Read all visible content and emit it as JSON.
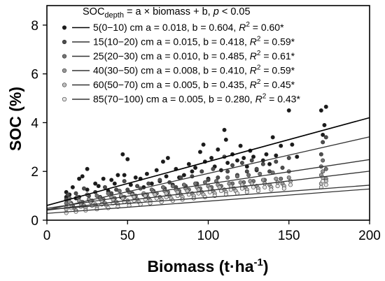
{
  "chart_data": {
    "type": "scatter",
    "xlabel": "Biomass",
    "xlabel_unit": "(t·ha",
    "xlabel_unit_sup": "-1",
    "xlabel_unit_close": ")",
    "ylabel": "SOC (%)",
    "xlim": [
      0,
      200
    ],
    "ylim": [
      0,
      8.8
    ],
    "x_ticks": [
      0,
      50,
      100,
      150,
      200
    ],
    "y_ticks": [
      0,
      2,
      4,
      6,
      8
    ],
    "x_tick_labels": [
      "0",
      "50",
      "100",
      "150",
      "200"
    ],
    "y_tick_labels": [
      "0",
      "2",
      "4",
      "6",
      "8"
    ],
    "legend_position": "top-right (inside)",
    "legend_header": {
      "lhs": "SOC",
      "lhs_sub": "depth",
      "rhs": " = a × biomass + b, ",
      "p_label": "p",
      "p_rest": " < 0.05"
    },
    "series": [
      {
        "name": "5(0−10) cm",
        "label_text": "a = 0.018, b = 0.604, ",
        "r2_label": "R",
        "r2_value": "= 0.60*",
        "a": 0.018,
        "b": 0.604,
        "r2": 0.6,
        "color": "#1a1a1a",
        "points": [
          [
            12,
            1.15
          ],
          [
            12,
            0.95
          ],
          [
            14,
            1.05
          ],
          [
            16,
            1.35
          ],
          [
            18,
            0.9
          ],
          [
            20,
            1.7
          ],
          [
            22,
            1.8
          ],
          [
            25,
            2.1
          ],
          [
            25,
            1.25
          ],
          [
            30,
            1.5
          ],
          [
            32,
            1.4
          ],
          [
            35,
            1.7
          ],
          [
            38,
            1.2
          ],
          [
            40,
            1.65
          ],
          [
            42,
            1.5
          ],
          [
            44,
            1.85
          ],
          [
            47,
            2.7
          ],
          [
            48,
            1.85
          ],
          [
            50,
            2.5
          ],
          [
            52,
            1.45
          ],
          [
            55,
            1.75
          ],
          [
            58,
            1.7
          ],
          [
            60,
            1.35
          ],
          [
            62,
            1.9
          ],
          [
            65,
            1.5
          ],
          [
            68,
            2.05
          ],
          [
            70,
            1.6
          ],
          [
            72,
            2.4
          ],
          [
            74,
            1.8
          ],
          [
            75,
            2.55
          ],
          [
            78,
            1.45
          ],
          [
            80,
            2.1
          ],
          [
            82,
            1.75
          ],
          [
            85,
            1.85
          ],
          [
            88,
            2.3
          ],
          [
            90,
            2.0
          ],
          [
            92,
            2.15
          ],
          [
            95,
            2.8
          ],
          [
            97,
            3.1
          ],
          [
            98,
            2.4
          ],
          [
            100,
            1.7
          ],
          [
            102,
            2.55
          ],
          [
            104,
            2.2
          ],
          [
            106,
            2.9
          ],
          [
            108,
            2.05
          ],
          [
            110,
            3.7
          ],
          [
            111,
            3.3
          ],
          [
            112,
            2.35
          ],
          [
            115,
            2.7
          ],
          [
            118,
            2.45
          ],
          [
            120,
            3.05
          ],
          [
            122,
            2.55
          ],
          [
            124,
            2.2
          ],
          [
            126,
            2.85
          ],
          [
            128,
            2.6
          ],
          [
            130,
            2.05
          ],
          [
            134,
            2.45
          ],
          [
            136,
            2.7
          ],
          [
            138,
            2.3
          ],
          [
            140,
            3.4
          ],
          [
            142,
            2.65
          ],
          [
            145,
            3.05
          ],
          [
            150,
            4.5
          ],
          [
            152,
            3.1
          ],
          [
            155,
            2.6
          ],
          [
            170,
            4.5
          ],
          [
            171,
            3.5
          ],
          [
            172,
            3.9
          ],
          [
            173,
            4.65
          ]
        ]
      },
      {
        "name": "15(10−20) cm",
        "label_text": "a = 0.015, b = 0.418, ",
        "r2_label": "R",
        "r2_value": "= 0.59*",
        "a": 0.015,
        "b": 0.418,
        "r2": 0.59,
        "color": "#4d4d4d",
        "points": [
          [
            12,
            0.85
          ],
          [
            13,
            1.05
          ],
          [
            15,
            0.7
          ],
          [
            18,
            1.1
          ],
          [
            20,
            0.95
          ],
          [
            23,
            1.3
          ],
          [
            26,
            1.0
          ],
          [
            30,
            1.15
          ],
          [
            33,
            0.95
          ],
          [
            36,
            1.35
          ],
          [
            40,
            1.1
          ],
          [
            43,
            1.25
          ],
          [
            46,
            0.95
          ],
          [
            48,
            1.6
          ],
          [
            50,
            1.25
          ],
          [
            53,
            1.1
          ],
          [
            56,
            1.4
          ],
          [
            60,
            1.05
          ],
          [
            63,
            1.5
          ],
          [
            66,
            1.2
          ],
          [
            70,
            1.65
          ],
          [
            73,
            1.3
          ],
          [
            76,
            1.55
          ],
          [
            80,
            1.35
          ],
          [
            83,
            1.75
          ],
          [
            86,
            1.4
          ],
          [
            90,
            1.8
          ],
          [
            93,
            1.5
          ],
          [
            96,
            2.0
          ],
          [
            100,
            1.65
          ],
          [
            103,
            2.1
          ],
          [
            106,
            1.75
          ],
          [
            110,
            2.6
          ],
          [
            112,
            2.0
          ],
          [
            115,
            2.25
          ],
          [
            118,
            1.85
          ],
          [
            121,
            2.35
          ],
          [
            124,
            2.0
          ],
          [
            127,
            2.45
          ],
          [
            130,
            2.1
          ],
          [
            134,
            2.3
          ],
          [
            138,
            2.0
          ],
          [
            142,
            2.4
          ],
          [
            146,
            2.15
          ],
          [
            150,
            2.55
          ],
          [
            170,
            2.7
          ],
          [
            171,
            3.2
          ],
          [
            173,
            3.4
          ]
        ]
      },
      {
        "name": "25(20−30) cm",
        "label_text": "a = 0.010, b = 0.485, ",
        "r2_label": "R",
        "r2_value": "= 0.61*",
        "a": 0.01,
        "b": 0.485,
        "r2": 0.61,
        "color": "#737373",
        "points": [
          [
            12,
            0.7
          ],
          [
            14,
            0.9
          ],
          [
            16,
            0.6
          ],
          [
            19,
            0.95
          ],
          [
            22,
            0.75
          ],
          [
            25,
            1.05
          ],
          [
            28,
            0.8
          ],
          [
            31,
            1.0
          ],
          [
            35,
            0.85
          ],
          [
            38,
            1.1
          ],
          [
            42,
            0.9
          ],
          [
            45,
            1.2
          ],
          [
            48,
            0.95
          ],
          [
            51,
            1.15
          ],
          [
            55,
            1.0
          ],
          [
            58,
            1.3
          ],
          [
            62,
            1.05
          ],
          [
            65,
            1.25
          ],
          [
            68,
            1.1
          ],
          [
            72,
            1.35
          ],
          [
            75,
            1.15
          ],
          [
            78,
            1.4
          ],
          [
            82,
            1.2
          ],
          [
            85,
            1.45
          ],
          [
            88,
            1.25
          ],
          [
            92,
            1.5
          ],
          [
            95,
            1.3
          ],
          [
            98,
            1.55
          ],
          [
            102,
            1.35
          ],
          [
            105,
            1.6
          ],
          [
            108,
            1.4
          ],
          [
            112,
            1.75
          ],
          [
            115,
            1.5
          ],
          [
            118,
            1.8
          ],
          [
            122,
            1.55
          ],
          [
            125,
            1.85
          ],
          [
            128,
            1.6
          ],
          [
            132,
            1.9
          ],
          [
            135,
            1.65
          ],
          [
            140,
            1.95
          ],
          [
            145,
            1.7
          ],
          [
            150,
            2.0
          ],
          [
            170,
            2.2
          ],
          [
            171,
            2.45
          ],
          [
            173,
            2.1
          ]
        ]
      },
      {
        "name": "40(30−50) cm",
        "label_text": "a = 0.008, b = 0.410, ",
        "r2_label": "R",
        "r2_value": "= 0.59*",
        "a": 0.008,
        "b": 0.41,
        "r2": 0.59,
        "color": "#999999",
        "points": [
          [
            12,
            0.55
          ],
          [
            14,
            0.75
          ],
          [
            17,
            0.5
          ],
          [
            20,
            0.8
          ],
          [
            23,
            0.6
          ],
          [
            26,
            0.85
          ],
          [
            30,
            0.65
          ],
          [
            33,
            0.9
          ],
          [
            36,
            0.7
          ],
          [
            40,
            0.95
          ],
          [
            43,
            0.75
          ],
          [
            46,
            1.0
          ],
          [
            50,
            0.8
          ],
          [
            53,
            1.05
          ],
          [
            56,
            0.85
          ],
          [
            60,
            1.1
          ],
          [
            63,
            0.9
          ],
          [
            66,
            1.15
          ],
          [
            70,
            0.95
          ],
          [
            73,
            1.2
          ],
          [
            76,
            1.0
          ],
          [
            80,
            1.25
          ],
          [
            83,
            1.05
          ],
          [
            86,
            1.3
          ],
          [
            90,
            1.1
          ],
          [
            93,
            1.35
          ],
          [
            96,
            1.15
          ],
          [
            100,
            1.4
          ],
          [
            103,
            1.2
          ],
          [
            106,
            1.45
          ],
          [
            110,
            1.25
          ],
          [
            113,
            1.5
          ],
          [
            116,
            1.3
          ],
          [
            120,
            1.55
          ],
          [
            123,
            1.35
          ],
          [
            126,
            1.6
          ],
          [
            130,
            1.4
          ],
          [
            134,
            1.65
          ],
          [
            138,
            1.45
          ],
          [
            142,
            1.7
          ],
          [
            146,
            1.5
          ],
          [
            150,
            1.75
          ],
          [
            170,
            1.85
          ],
          [
            171,
            2.0
          ],
          [
            173,
            1.7
          ]
        ]
      },
      {
        "name": "60(50−70) cm",
        "label_text": "a = 0.005, b = 0.435, ",
        "r2_label": "R",
        "r2_value": "= 0.45*",
        "a": 0.005,
        "b": 0.435,
        "r2": 0.45,
        "color": "#bfbfbf",
        "points": [
          [
            12,
            0.45
          ],
          [
            15,
            0.65
          ],
          [
            18,
            0.4
          ],
          [
            21,
            0.7
          ],
          [
            24,
            0.5
          ],
          [
            27,
            0.75
          ],
          [
            31,
            0.55
          ],
          [
            34,
            0.8
          ],
          [
            37,
            0.6
          ],
          [
            41,
            0.85
          ],
          [
            44,
            0.65
          ],
          [
            47,
            0.9
          ],
          [
            51,
            0.7
          ],
          [
            54,
            0.95
          ],
          [
            57,
            0.75
          ],
          [
            61,
            1.0
          ],
          [
            64,
            0.8
          ],
          [
            67,
            1.05
          ],
          [
            71,
            0.85
          ],
          [
            74,
            1.1
          ],
          [
            77,
            0.9
          ],
          [
            81,
            1.15
          ],
          [
            84,
            0.95
          ],
          [
            87,
            1.2
          ],
          [
            91,
            1.0
          ],
          [
            94,
            1.25
          ],
          [
            97,
            1.05
          ],
          [
            101,
            1.3
          ],
          [
            104,
            1.1
          ],
          [
            107,
            1.35
          ],
          [
            111,
            1.15
          ],
          [
            114,
            1.4
          ],
          [
            117,
            1.2
          ],
          [
            121,
            1.45
          ],
          [
            124,
            1.25
          ],
          [
            127,
            1.5
          ],
          [
            131,
            1.3
          ],
          [
            135,
            1.5
          ],
          [
            139,
            1.35
          ],
          [
            143,
            1.55
          ],
          [
            147,
            1.4
          ],
          [
            151,
            1.6
          ],
          [
            170,
            1.5
          ],
          [
            171,
            1.75
          ],
          [
            173,
            1.6
          ]
        ]
      },
      {
        "name": "85(70−100) cm",
        "label_text": "a = 0.005, b = 0.280, ",
        "r2_label": "R",
        "r2_value": "= 0.43*",
        "a": 0.005,
        "b": 0.28,
        "r2": 0.43,
        "color": "#e6e6e6",
        "points": [
          [
            12,
            0.3
          ],
          [
            15,
            0.5
          ],
          [
            18,
            0.35
          ],
          [
            21,
            0.55
          ],
          [
            24,
            0.4
          ],
          [
            28,
            0.6
          ],
          [
            31,
            0.45
          ],
          [
            34,
            0.65
          ],
          [
            38,
            0.5
          ],
          [
            41,
            0.7
          ],
          [
            44,
            0.55
          ],
          [
            48,
            0.75
          ],
          [
            51,
            0.6
          ],
          [
            54,
            0.8
          ],
          [
            58,
            0.65
          ],
          [
            61,
            0.85
          ],
          [
            64,
            0.7
          ],
          [
            68,
            0.9
          ],
          [
            71,
            0.75
          ],
          [
            74,
            0.95
          ],
          [
            78,
            0.8
          ],
          [
            81,
            1.0
          ],
          [
            84,
            0.85
          ],
          [
            88,
            1.05
          ],
          [
            91,
            0.9
          ],
          [
            94,
            1.1
          ],
          [
            98,
            0.95
          ],
          [
            101,
            1.15
          ],
          [
            104,
            1.0
          ],
          [
            108,
            1.2
          ],
          [
            111,
            1.05
          ],
          [
            114,
            1.25
          ],
          [
            118,
            1.1
          ],
          [
            121,
            1.3
          ],
          [
            124,
            1.15
          ],
          [
            128,
            1.35
          ],
          [
            131,
            1.2
          ],
          [
            135,
            1.35
          ],
          [
            139,
            1.25
          ],
          [
            143,
            1.4
          ],
          [
            147,
            1.3
          ],
          [
            151,
            1.45
          ],
          [
            170,
            1.35
          ],
          [
            171,
            1.6
          ],
          [
            173,
            1.45
          ]
        ]
      }
    ]
  }
}
